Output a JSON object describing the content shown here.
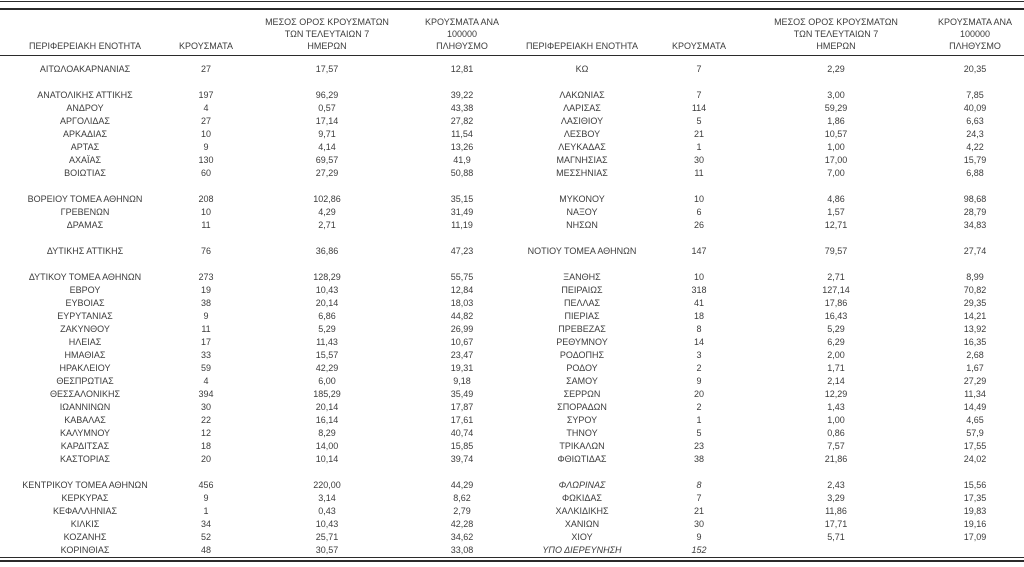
{
  "table": {
    "headers": {
      "region": "ΠΕΡΙΦΕΡΕΙΑΚΗ ΕΝΟΤΗΤΑ",
      "cases": "ΚΡΟΥΣΜΑΤΑ",
      "avg7": "ΜΕΣΟΣ ΟΡΟΣ ΚΡΟΥΣΜΑΤΩΝ\nΤΩΝ ΤΕΛΕΥΤΑΙΩΝ 7\nΗΜΕΡΩΝ",
      "per100k": "ΚΡΟΥΣΜΑΤΑ ΑΝΑ 100000\nΠΛΗΘΥΣΜΟ"
    },
    "colors": {
      "text": "#3c3c3c",
      "line": "#2b2b2b",
      "background": "#ffffff"
    },
    "rows": [
      {
        "left": {
          "name": "ΑΙΤΩΛΟΑΚΑΡΝΑΝΙΑΣ",
          "cases": "27",
          "avg7": "17,57",
          "per100k": "12,81"
        },
        "right": {
          "name": "ΚΩ",
          "cases": "7",
          "avg7": "2,29",
          "per100k": "20,35"
        }
      },
      {
        "left": null,
        "right": null
      },
      {
        "left": {
          "name": "ΑΝΑΤΟΛΙΚΗΣ ΑΤΤΙΚΗΣ",
          "cases": "197",
          "avg7": "96,29",
          "per100k": "39,22"
        },
        "right": {
          "name": "ΛΑΚΩΝΙΑΣ",
          "cases": "7",
          "avg7": "3,00",
          "per100k": "7,85"
        }
      },
      {
        "left": {
          "name": "ΑΝΔΡΟΥ",
          "cases": "4",
          "avg7": "0,57",
          "per100k": "43,38"
        },
        "right": {
          "name": "ΛΑΡΙΣΑΣ",
          "cases": "114",
          "avg7": "59,29",
          "per100k": "40,09"
        }
      },
      {
        "left": {
          "name": "ΑΡΓΟΛΙΔΑΣ",
          "cases": "27",
          "avg7": "17,14",
          "per100k": "27,82"
        },
        "right": {
          "name": "ΛΑΣΙΘΙΟΥ",
          "cases": "5",
          "avg7": "1,86",
          "per100k": "6,63"
        }
      },
      {
        "left": {
          "name": "ΑΡΚΑΔΙΑΣ",
          "cases": "10",
          "avg7": "9,71",
          "per100k": "11,54"
        },
        "right": {
          "name": "ΛΕΣΒΟΥ",
          "cases": "21",
          "avg7": "10,57",
          "per100k": "24,3"
        }
      },
      {
        "left": {
          "name": "ΑΡΤΑΣ",
          "cases": "9",
          "avg7": "4,14",
          "per100k": "13,26"
        },
        "right": {
          "name": "ΛΕΥΚΑΔΑΣ",
          "cases": "1",
          "avg7": "1,00",
          "per100k": "4,22"
        }
      },
      {
        "left": {
          "name": "ΑΧΑΪΑΣ",
          "cases": "130",
          "avg7": "69,57",
          "per100k": "41,9"
        },
        "right": {
          "name": "ΜΑΓΝΗΣΙΑΣ",
          "cases": "30",
          "avg7": "17,00",
          "per100k": "15,79"
        }
      },
      {
        "left": {
          "name": "ΒΟΙΩΤΙΑΣ",
          "cases": "60",
          "avg7": "27,29",
          "per100k": "50,88"
        },
        "right": {
          "name": "ΜΕΣΣΗΝΙΑΣ",
          "cases": "11",
          "avg7": "7,00",
          "per100k": "6,88"
        }
      },
      {
        "left": null,
        "right": null
      },
      {
        "left": {
          "name": "ΒΟΡΕΙΟΥ ΤΟΜΕΑ ΑΘΗΝΩΝ",
          "cases": "208",
          "avg7": "102,86",
          "per100k": "35,15"
        },
        "right": {
          "name": "ΜΥΚΟΝΟΥ",
          "cases": "10",
          "avg7": "4,86",
          "per100k": "98,68"
        }
      },
      {
        "left": {
          "name": "ΓΡΕΒΕΝΩΝ",
          "cases": "10",
          "avg7": "4,29",
          "per100k": "31,49"
        },
        "right": {
          "name": "ΝΑΞΟΥ",
          "cases": "6",
          "avg7": "1,57",
          "per100k": "28,79"
        }
      },
      {
        "left": {
          "name": "ΔΡΑΜΑΣ",
          "cases": "11",
          "avg7": "2,71",
          "per100k": "11,19"
        },
        "right": {
          "name": "ΝΗΣΩΝ",
          "cases": "26",
          "avg7": "12,71",
          "per100k": "34,83"
        }
      },
      {
        "left": null,
        "right": null
      },
      {
        "left": {
          "name": "ΔΥΤΙΚΗΣ ΑΤΤΙΚΗΣ",
          "cases": "76",
          "avg7": "36,86",
          "per100k": "47,23"
        },
        "right": {
          "name": "ΝΟΤΙΟΥ ΤΟΜΕΑ ΑΘΗΝΩΝ",
          "cases": "147",
          "avg7": "79,57",
          "per100k": "27,74"
        }
      },
      {
        "left": null,
        "right": null
      },
      {
        "left": {
          "name": "ΔΥΤΙΚΟΥ ΤΟΜΕΑ ΑΘΗΝΩΝ",
          "cases": "273",
          "avg7": "128,29",
          "per100k": "55,75"
        },
        "right": {
          "name": "ΞΑΝΘΗΣ",
          "cases": "10",
          "avg7": "2,71",
          "per100k": "8,99"
        }
      },
      {
        "left": {
          "name": "ΕΒΡΟΥ",
          "cases": "19",
          "avg7": "10,43",
          "per100k": "12,84"
        },
        "right": {
          "name": "ΠΕΙΡΑΙΩΣ",
          "cases": "318",
          "avg7": "127,14",
          "per100k": "70,82"
        }
      },
      {
        "left": {
          "name": "ΕΥΒΟΙΑΣ",
          "cases": "38",
          "avg7": "20,14",
          "per100k": "18,03"
        },
        "right": {
          "name": "ΠΕΛΛΑΣ",
          "cases": "41",
          "avg7": "17,86",
          "per100k": "29,35"
        }
      },
      {
        "left": {
          "name": "ΕΥΡΥΤΑΝΙΑΣ",
          "cases": "9",
          "avg7": "6,86",
          "per100k": "44,82"
        },
        "right": {
          "name": "ΠΙΕΡΙΑΣ",
          "cases": "18",
          "avg7": "16,43",
          "per100k": "14,21"
        }
      },
      {
        "left": {
          "name": "ΖΑΚΥΝΘΟΥ",
          "cases": "11",
          "avg7": "5,29",
          "per100k": "26,99"
        },
        "right": {
          "name": "ΠΡΕΒΕΖΑΣ",
          "cases": "8",
          "avg7": "5,29",
          "per100k": "13,92"
        }
      },
      {
        "left": {
          "name": "ΗΛΕΙΑΣ",
          "cases": "17",
          "avg7": "11,43",
          "per100k": "10,67"
        },
        "right": {
          "name": "ΡΕΘΥΜΝΟΥ",
          "cases": "14",
          "avg7": "6,29",
          "per100k": "16,35"
        }
      },
      {
        "left": {
          "name": "ΗΜΑΘΙΑΣ",
          "cases": "33",
          "avg7": "15,57",
          "per100k": "23,47"
        },
        "right": {
          "name": "ΡΟΔΟΠΗΣ",
          "cases": "3",
          "avg7": "2,00",
          "per100k": "2,68"
        }
      },
      {
        "left": {
          "name": "ΗΡΑΚΛΕΙΟΥ",
          "cases": "59",
          "avg7": "42,29",
          "per100k": "19,31"
        },
        "right": {
          "name": "ΡΟΔΟΥ",
          "cases": "2",
          "avg7": "1,71",
          "per100k": "1,67"
        }
      },
      {
        "left": {
          "name": "ΘΕΣΠΡΩΤΙΑΣ",
          "cases": "4",
          "avg7": "6,00",
          "per100k": "9,18"
        },
        "right": {
          "name": "ΣΑΜΟΥ",
          "cases": "9",
          "avg7": "2,14",
          "per100k": "27,29"
        }
      },
      {
        "left": {
          "name": "ΘΕΣΣΑΛΟΝΙΚΗΣ",
          "cases": "394",
          "avg7": "185,29",
          "per100k": "35,49"
        },
        "right": {
          "name": "ΣΕΡΡΩΝ",
          "cases": "20",
          "avg7": "12,29",
          "per100k": "11,34"
        }
      },
      {
        "left": {
          "name": "ΙΩΑΝΝΙΝΩΝ",
          "cases": "30",
          "avg7": "20,14",
          "per100k": "17,87"
        },
        "right": {
          "name": "ΣΠΟΡΑΔΩΝ",
          "cases": "2",
          "avg7": "1,43",
          "per100k": "14,49"
        }
      },
      {
        "left": {
          "name": "ΚΑΒΑΛΑΣ",
          "cases": "22",
          "avg7": "16,14",
          "per100k": "17,61"
        },
        "right": {
          "name": "ΣΥΡΟΥ",
          "cases": "1",
          "avg7": "1,00",
          "per100k": "4,65"
        }
      },
      {
        "left": {
          "name": "ΚΑΛΥΜΝΟΥ",
          "cases": "12",
          "avg7": "8,29",
          "per100k": "40,74"
        },
        "right": {
          "name": "ΤΗΝΟΥ",
          "cases": "5",
          "avg7": "0,86",
          "per100k": "57,9"
        }
      },
      {
        "left": {
          "name": "ΚΑΡΔΙΤΣΑΣ",
          "cases": "18",
          "avg7": "14,00",
          "per100k": "15,85"
        },
        "right": {
          "name": "ΤΡΙΚΑΛΩΝ",
          "cases": "23",
          "avg7": "7,57",
          "per100k": "17,55"
        }
      },
      {
        "left": {
          "name": "ΚΑΣΤΟΡΙΑΣ",
          "cases": "20",
          "avg7": "10,14",
          "per100k": "39,74"
        },
        "right": {
          "name": "ΦΘΙΩΤΙΔΑΣ",
          "cases": "38",
          "avg7": "21,86",
          "per100k": "24,02"
        }
      },
      {
        "left": null,
        "right": null
      },
      {
        "left": {
          "name": "ΚΕΝΤΡΙΚΟΥ ΤΟΜΕΑ ΑΘΗΝΩΝ",
          "cases": "456",
          "avg7": "220,00",
          "per100k": "44,29"
        },
        "right": {
          "name": "ΦΛΩΡΙΝΑΣ",
          "cases": "8",
          "avg7": "2,43",
          "per100k": "15,56",
          "italic": true
        }
      },
      {
        "left": {
          "name": "ΚΕΡΚΥΡΑΣ",
          "cases": "9",
          "avg7": "3,14",
          "per100k": "8,62"
        },
        "right": {
          "name": "ΦΩΚΙΔΑΣ",
          "cases": "7",
          "avg7": "3,29",
          "per100k": "17,35"
        }
      },
      {
        "left": {
          "name": "ΚΕΦΑΛΛΗΝΙΑΣ",
          "cases": "1",
          "avg7": "0,43",
          "per100k": "2,79"
        },
        "right": {
          "name": "ΧΑΛΚΙΔΙΚΗΣ",
          "cases": "21",
          "avg7": "11,86",
          "per100k": "19,83"
        }
      },
      {
        "left": {
          "name": "ΚΙΛΚΙΣ",
          "cases": "34",
          "avg7": "10,43",
          "per100k": "42,28"
        },
        "right": {
          "name": "ΧΑΝΙΩΝ",
          "cases": "30",
          "avg7": "17,71",
          "per100k": "19,16"
        }
      },
      {
        "left": {
          "name": "ΚΟΖΑΝΗΣ",
          "cases": "52",
          "avg7": "25,71",
          "per100k": "34,62"
        },
        "right": {
          "name": "ΧΙΟΥ",
          "cases": "9",
          "avg7": "5,71",
          "per100k": "17,09"
        }
      },
      {
        "left": {
          "name": "ΚΟΡΙΝΘΙΑΣ",
          "cases": "48",
          "avg7": "30,57",
          "per100k": "33,08"
        },
        "right": {
          "name": "ΥΠΟ ΔΙΕΡΕΥΝΗΣΗ",
          "cases": "152",
          "avg7": "",
          "per100k": "",
          "italic": true
        }
      }
    ]
  }
}
